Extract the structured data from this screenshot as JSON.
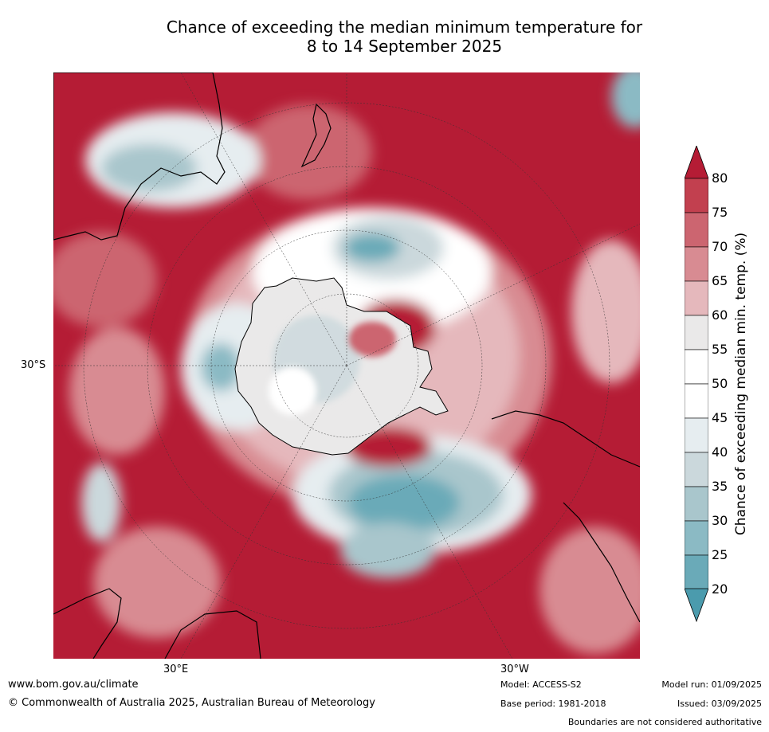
{
  "title_line1": "Chance of exceeding the median minimum temperature for",
  "title_line2": "8 to 14 September 2025",
  "map": {
    "lat_label": "30°S",
    "lon_label_east": "30°E",
    "lon_label_west": "30°W",
    "colors": {
      "deep_red": "#b51c35",
      "red_75": "#c2404f",
      "red_70": "#cc6570",
      "red_65": "#d88b92",
      "red_60": "#e5b8bc",
      "neutral_55": "#eae9e9",
      "white": "#ffffff",
      "blue_45": "#e6edf0",
      "blue_40": "#cbd8dc",
      "blue_35": "#a9c6cc",
      "blue_30": "#8bbac4",
      "blue_25": "#6aaab8",
      "blue_20": "#4b9bad"
    }
  },
  "colorbar": {
    "title": "Chance of exceeding median min. temp. (%)",
    "ticks": [
      "80",
      "75",
      "70",
      "65",
      "60",
      "55",
      "50",
      "45",
      "40",
      "35",
      "30",
      "25",
      "20"
    ]
  },
  "footer": {
    "website": "www.bom.gov.au/climate",
    "copyright": "© Commonwealth of Australia 2025, Australian Bureau of Meteorology",
    "model": "Model: ACCESS-S2",
    "base_period": "Base period: 1981-2018",
    "model_run": "Model run: 01/09/2025",
    "issued": "Issued: 03/09/2025",
    "disclaimer": "Boundaries are not considered authoritative"
  }
}
